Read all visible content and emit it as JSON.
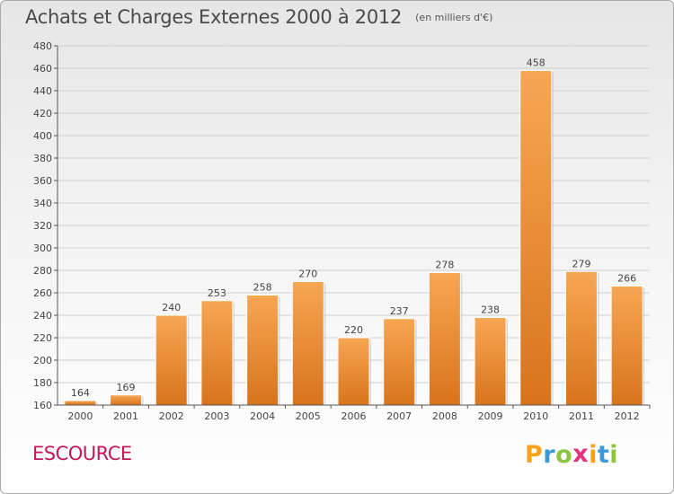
{
  "title": "Achats et Charges Externes 2000 à 2012",
  "subtitle": "(en milliers d'€)",
  "commune": "ESCOURCE",
  "logo": {
    "letters": [
      "P",
      "r",
      "o",
      "x",
      "i",
      "t",
      "i"
    ],
    "colors": [
      "#f7a21b",
      "#3a9ad9",
      "#8cc63f",
      "#e2337c",
      "#f7a21b",
      "#3a9ad9",
      "#8cc63f"
    ]
  },
  "colors": {
    "bar_light": "#f7a654",
    "bar_dark": "#d8741c",
    "axis": "#555555",
    "grid": "#d0d0d0"
  },
  "chart_data": {
    "type": "bar",
    "title": "Achats et Charges Externes 2000 à 2012",
    "xlabel": "",
    "ylabel": "",
    "categories": [
      "2000",
      "2001",
      "2002",
      "2003",
      "2004",
      "2005",
      "2006",
      "2007",
      "2008",
      "2009",
      "2010",
      "2011",
      "2012"
    ],
    "values": [
      164,
      169,
      240,
      253,
      258,
      270,
      220,
      237,
      278,
      238,
      458,
      279,
      266
    ],
    "ylim": [
      160,
      480
    ],
    "yticks": [
      160,
      180,
      200,
      220,
      240,
      260,
      280,
      300,
      320,
      340,
      360,
      380,
      400,
      420,
      440,
      460,
      480
    ],
    "grid": true
  }
}
